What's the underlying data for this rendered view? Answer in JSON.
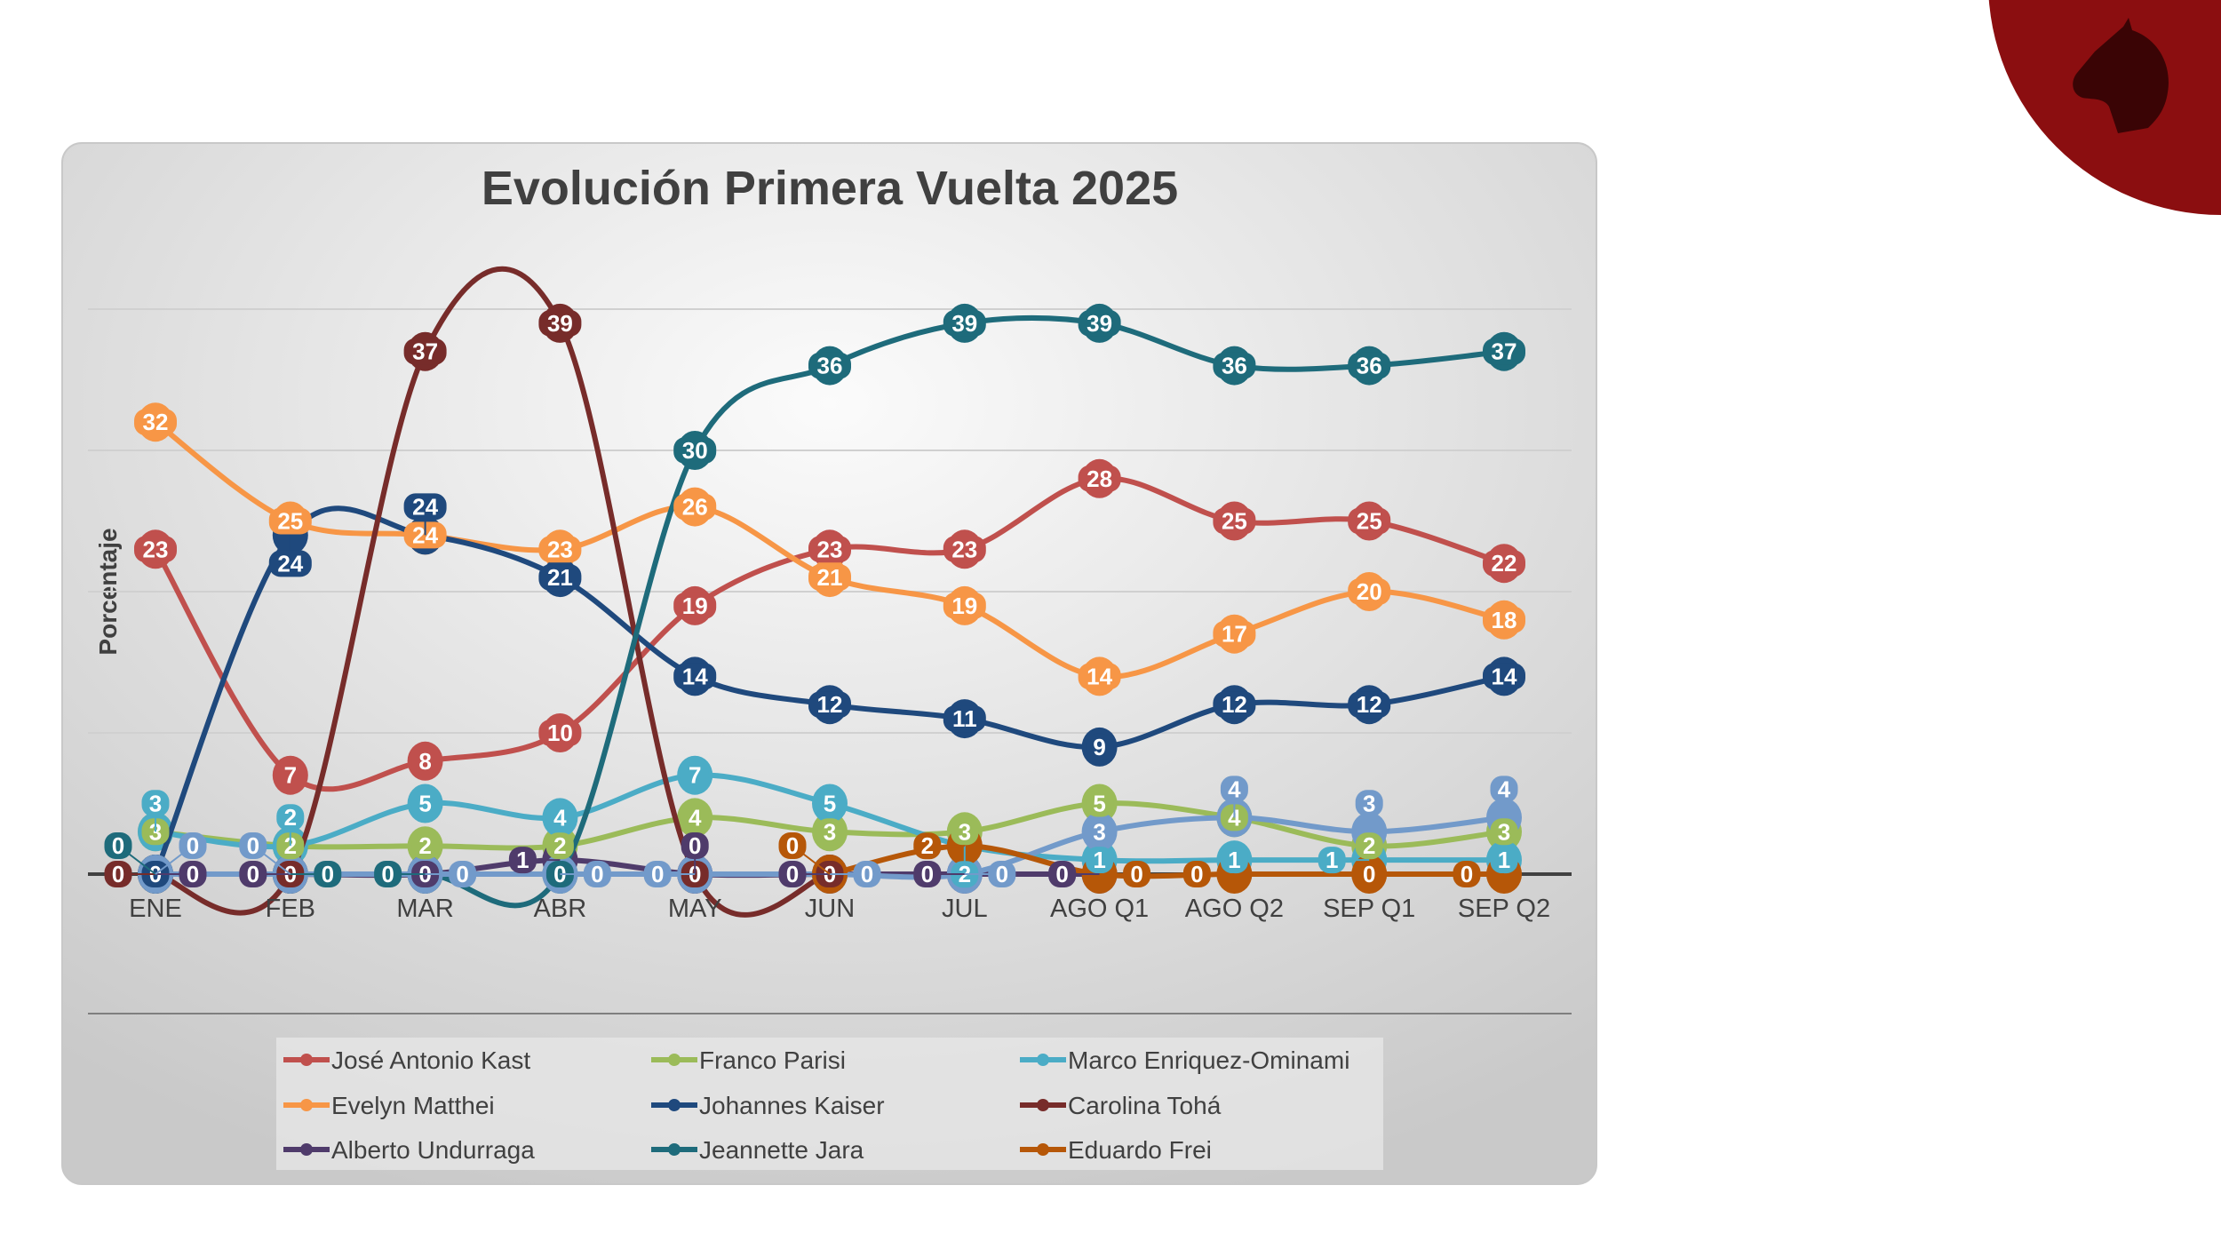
{
  "chart_data": {
    "type": "line",
    "title": "Evolución Primera Vuelta 2025",
    "ylabel": "Porcentaje",
    "xlabel": "",
    "ylim": [
      0,
      40
    ],
    "grid": true,
    "legend_position": "bottom",
    "categories": [
      "ENE",
      "FEB",
      "MAR",
      "ABR",
      "MAY",
      "JUN",
      "JUL",
      "AGO Q1",
      "AGO Q2",
      "SEP Q1",
      "SEP Q2"
    ],
    "series": [
      {
        "name": "José Antonio Kast",
        "color": "#c0504d",
        "values": [
          23,
          7,
          8,
          10,
          19,
          23,
          23,
          28,
          25,
          25,
          22
        ]
      },
      {
        "name": "Franco Parisi",
        "color": "#9bbb59",
        "values": [
          3,
          2,
          2,
          2,
          4,
          3,
          3,
          5,
          4,
          2,
          3
        ]
      },
      {
        "name": "Marco Enriquez-Ominami",
        "color": "#4bacc6",
        "values": [
          3,
          2,
          5,
          4,
          7,
          5,
          2,
          1,
          1,
          1,
          1
        ]
      },
      {
        "name": "Evelyn Matthei",
        "color": "#f79646",
        "values": [
          32,
          25,
          24,
          23,
          26,
          21,
          19,
          14,
          17,
          20,
          18
        ]
      },
      {
        "name": "Johannes Kaiser",
        "color": "#1f497d",
        "values": [
          0,
          24,
          24,
          21,
          14,
          12,
          11,
          9,
          12,
          12,
          14
        ]
      },
      {
        "name": "Carolina Tohá",
        "color": "#772c2a",
        "values": [
          0,
          0,
          37,
          39,
          0,
          0,
          null,
          null,
          null,
          null,
          null
        ]
      },
      {
        "name": "Alberto Undurraga",
        "color": "#4f3b6b",
        "values": [
          0,
          0,
          0,
          1,
          0,
          0,
          0,
          0,
          null,
          null,
          null
        ]
      },
      {
        "name": "Jeannette Jara",
        "color": "#1e6b7b",
        "values": [
          0,
          0,
          0,
          0,
          30,
          36,
          39,
          39,
          36,
          36,
          37
        ]
      },
      {
        "color": "#729aca",
        "values": [
          0,
          0,
          0,
          0,
          0,
          0,
          0,
          3,
          4,
          3,
          4
        ]
      },
      {
        "name": "Eduardo Frei",
        "color": "#b65708",
        "values": [
          null,
          null,
          null,
          null,
          null,
          0,
          2,
          0,
          0,
          0,
          0
        ]
      }
    ]
  },
  "logo": {
    "icon": "horse-head-icon",
    "color": "#8b0e10"
  }
}
